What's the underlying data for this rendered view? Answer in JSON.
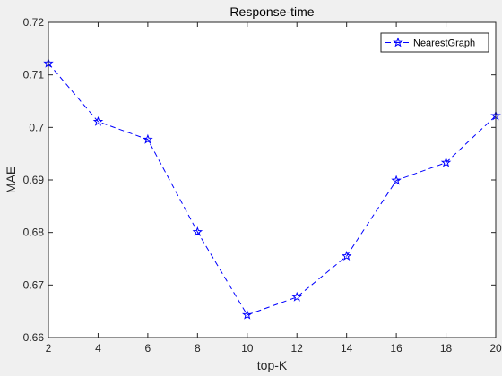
{
  "chart_data": {
    "type": "line",
    "title": "Response-time",
    "xlabel": "top-K",
    "ylabel": "MAE",
    "xlim": [
      2,
      20
    ],
    "ylim": [
      0.66,
      0.72
    ],
    "xticks": [
      2,
      4,
      6,
      8,
      10,
      12,
      14,
      16,
      18,
      20
    ],
    "yticks": [
      0.66,
      0.67,
      0.68,
      0.69,
      0.7,
      0.71,
      0.72
    ],
    "xtick_labels": [
      "2",
      "4",
      "6",
      "8",
      "10",
      "12",
      "14",
      "16",
      "18",
      "20"
    ],
    "ytick_labels": [
      "0.66",
      "0.67",
      "0.68",
      "0.69",
      "0.7",
      "0.71",
      "0.72"
    ],
    "grid": false,
    "legend_position": "top-right",
    "x": [
      2,
      4,
      6,
      8,
      10,
      12,
      14,
      16,
      18,
      20
    ],
    "series": [
      {
        "name": "NearestGraph",
        "color": "#0000ff",
        "line_style": "dashed",
        "marker": "pentagram",
        "values": [
          0.7122,
          0.7011,
          0.6977,
          0.6801,
          0.6643,
          0.6677,
          0.6755,
          0.6899,
          0.6933,
          0.7022
        ]
      }
    ]
  }
}
